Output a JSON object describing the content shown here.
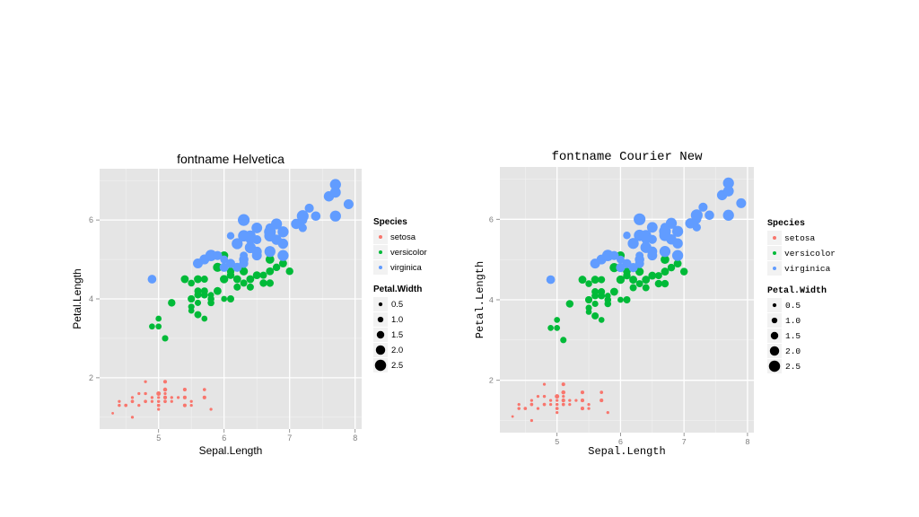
{
  "chart_data": [
    {
      "type": "scatter",
      "title": "fontname Helvetica",
      "xlabel": "Sepal.Length",
      "ylabel": "Petal.Length",
      "xlim": [
        4.1,
        8.1
      ],
      "ylim": [
        0.7,
        7.3
      ],
      "xticks": [
        5,
        6,
        7,
        8
      ],
      "yticks": [
        2,
        4,
        6
      ],
      "grid": true,
      "legend_placement": "right",
      "color_legend": {
        "title": "Species"
      },
      "size_legend": {
        "title": "Petal.Width",
        "values": [
          0.5,
          1.0,
          1.5,
          2.0,
          2.5
        ],
        "labels": [
          "0.5",
          "1.0",
          "1.5",
          "2.0",
          "2.5"
        ]
      },
      "series": [
        {
          "name": "setosa",
          "color": "#F8766D",
          "x": [
            5.1,
            4.9,
            4.7,
            4.6,
            5.0,
            5.4,
            4.6,
            5.0,
            4.4,
            4.9,
            5.4,
            4.8,
            4.8,
            4.3,
            5.8,
            5.7,
            5.4,
            5.1,
            5.7,
            5.1,
            5.4,
            5.1,
            4.6,
            5.1,
            4.8,
            5.0,
            5.0,
            5.2,
            5.2,
            4.7,
            4.8,
            5.4,
            5.2,
            5.5,
            4.9,
            5.0,
            5.5,
            4.9,
            4.4,
            5.1,
            5.0,
            4.5,
            4.4,
            5.0,
            5.1,
            4.8,
            5.1,
            4.6,
            5.3,
            5.0
          ],
          "y": [
            1.4,
            1.4,
            1.3,
            1.5,
            1.4,
            1.7,
            1.4,
            1.5,
            1.4,
            1.5,
            1.5,
            1.6,
            1.4,
            1.1,
            1.2,
            1.5,
            1.3,
            1.4,
            1.7,
            1.5,
            1.7,
            1.5,
            1.0,
            1.7,
            1.9,
            1.6,
            1.6,
            1.5,
            1.4,
            1.6,
            1.6,
            1.5,
            1.5,
            1.4,
            1.5,
            1.2,
            1.3,
            1.4,
            1.3,
            1.5,
            1.3,
            1.3,
            1.3,
            1.6,
            1.9,
            1.4,
            1.6,
            1.4,
            1.5,
            1.4
          ],
          "size": [
            0.2,
            0.2,
            0.2,
            0.2,
            0.2,
            0.4,
            0.3,
            0.2,
            0.2,
            0.1,
            0.2,
            0.2,
            0.1,
            0.1,
            0.2,
            0.4,
            0.4,
            0.3,
            0.3,
            0.3,
            0.2,
            0.4,
            0.2,
            0.5,
            0.2,
            0.2,
            0.4,
            0.2,
            0.2,
            0.2,
            0.2,
            0.4,
            0.1,
            0.2,
            0.2,
            0.2,
            0.2,
            0.1,
            0.2,
            0.2,
            0.3,
            0.3,
            0.2,
            0.6,
            0.4,
            0.3,
            0.2,
            0.2,
            0.2,
            0.2
          ]
        },
        {
          "name": "versicolor",
          "color": "#00BA38",
          "x": [
            7.0,
            6.4,
            6.9,
            5.5,
            6.5,
            5.7,
            6.3,
            4.9,
            6.6,
            5.2,
            5.0,
            5.9,
            6.0,
            6.1,
            5.6,
            6.7,
            5.6,
            5.8,
            6.2,
            5.6,
            5.9,
            6.1,
            6.3,
            6.1,
            6.4,
            6.6,
            6.8,
            6.7,
            6.0,
            5.7,
            5.5,
            5.5,
            5.8,
            6.0,
            5.4,
            6.0,
            6.7,
            6.3,
            5.6,
            5.5,
            5.5,
            6.1,
            5.8,
            5.0,
            5.6,
            5.7,
            5.7,
            6.2,
            5.1,
            5.7
          ],
          "y": [
            4.7,
            4.5,
            4.9,
            4.0,
            4.6,
            4.5,
            4.7,
            3.3,
            4.6,
            3.9,
            3.5,
            4.2,
            4.0,
            4.7,
            3.6,
            4.4,
            4.5,
            4.1,
            4.5,
            3.9,
            4.8,
            4.0,
            4.9,
            4.7,
            4.3,
            4.4,
            4.8,
            5.0,
            4.5,
            3.5,
            3.8,
            3.7,
            3.9,
            5.1,
            4.5,
            4.5,
            4.7,
            4.4,
            4.1,
            4.0,
            4.4,
            4.6,
            4.0,
            3.3,
            4.2,
            4.2,
            4.2,
            4.3,
            3.0,
            4.1
          ],
          "size": [
            1.4,
            1.5,
            1.5,
            1.3,
            1.5,
            1.3,
            1.6,
            1.0,
            1.3,
            1.4,
            1.0,
            1.5,
            1.0,
            1.4,
            1.3,
            1.4,
            1.5,
            1.0,
            1.5,
            1.1,
            1.8,
            1.3,
            1.5,
            1.2,
            1.3,
            1.4,
            1.4,
            1.7,
            1.5,
            1.0,
            1.1,
            1.0,
            1.2,
            1.6,
            1.5,
            1.6,
            1.5,
            1.3,
            1.3,
            1.3,
            1.2,
            1.4,
            1.2,
            1.0,
            1.3,
            1.2,
            1.3,
            1.3,
            1.1,
            1.3
          ]
        },
        {
          "name": "virginica",
          "color": "#619CFF",
          "x": [
            6.3,
            5.8,
            7.1,
            6.3,
            6.5,
            7.6,
            4.9,
            7.3,
            6.7,
            7.2,
            6.5,
            6.4,
            6.8,
            5.7,
            5.8,
            6.4,
            6.5,
            7.7,
            7.7,
            6.0,
            6.9,
            5.6,
            7.7,
            6.3,
            6.7,
            7.2,
            6.2,
            6.1,
            6.4,
            7.2,
            7.4,
            7.9,
            6.4,
            6.3,
            6.1,
            7.7,
            6.3,
            6.4,
            6.0,
            6.9,
            6.7,
            6.9,
            5.8,
            6.8,
            6.7,
            6.7,
            6.3,
            6.5,
            6.2,
            5.9
          ],
          "y": [
            6.0,
            5.1,
            5.9,
            5.6,
            5.8,
            6.6,
            4.5,
            6.3,
            5.8,
            6.1,
            5.1,
            5.3,
            5.5,
            5.0,
            5.1,
            5.3,
            5.5,
            6.7,
            6.9,
            5.0,
            5.7,
            4.9,
            6.7,
            4.9,
            5.7,
            6.0,
            4.8,
            4.9,
            5.6,
            5.8,
            6.1,
            6.4,
            5.6,
            5.1,
            5.6,
            6.1,
            5.6,
            5.5,
            4.8,
            5.4,
            5.6,
            5.1,
            5.1,
            5.9,
            5.7,
            5.2,
            5.0,
            5.2,
            5.4,
            5.1
          ],
          "size": [
            2.5,
            1.9,
            2.1,
            1.8,
            2.2,
            2.1,
            1.7,
            1.8,
            1.8,
            2.5,
            2.0,
            1.9,
            2.1,
            2.0,
            2.4,
            2.3,
            1.8,
            2.2,
            2.3,
            1.5,
            2.3,
            2.0,
            2.0,
            1.8,
            2.1,
            1.8,
            1.8,
            1.8,
            2.1,
            1.6,
            1.9,
            2.0,
            2.2,
            1.5,
            1.4,
            2.3,
            2.4,
            1.8,
            1.8,
            2.1,
            2.4,
            2.3,
            1.9,
            2.3,
            2.5,
            2.3,
            1.9,
            2.0,
            2.3,
            1.8
          ]
        }
      ]
    },
    {
      "type": "scatter",
      "title": "fontname Courier New",
      "xlabel": "Sepal.Length",
      "ylabel": "Petal.Length",
      "xlim": [
        4.1,
        8.1
      ],
      "ylim": [
        0.7,
        7.3
      ],
      "xticks": [
        5,
        6,
        7,
        8
      ],
      "yticks": [
        2,
        4,
        6
      ],
      "grid": true,
      "legend_placement": "right",
      "color_legend": {
        "title": "Species"
      },
      "size_legend": {
        "title": "Petal.Width",
        "values": [
          0.5,
          1.0,
          1.5,
          2.0,
          2.5
        ],
        "labels": [
          "0.5",
          "1.0",
          "1.5",
          "2.0",
          "2.5"
        ]
      },
      "series_same_as_first": true
    }
  ]
}
